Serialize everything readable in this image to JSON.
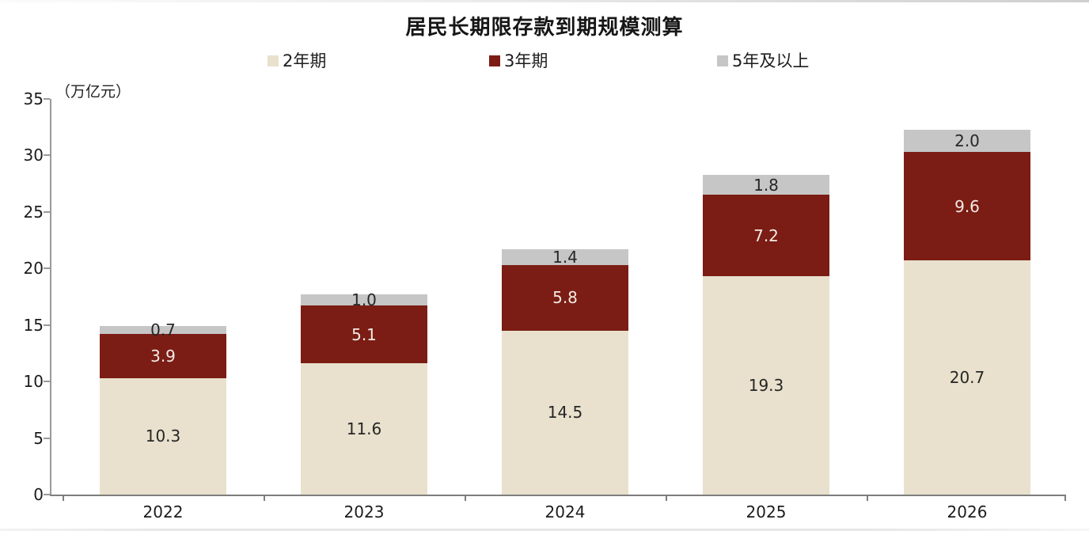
{
  "chart_data": {
    "type": "bar",
    "stacked": true,
    "title": "居民长期限存款到期规模测算",
    "unit_label": "（万亿元）",
    "categories": [
      "2022",
      "2023",
      "2024",
      "2025",
      "2026"
    ],
    "series": [
      {
        "name": "2年期",
        "color": "#E9E1CD",
        "label_color": "#262626",
        "values": [
          10.3,
          11.6,
          14.5,
          19.3,
          20.7
        ]
      },
      {
        "name": "3年期",
        "color": "#7B1D14",
        "label_color": "#F3EAE5",
        "values": [
          3.9,
          5.1,
          5.8,
          7.2,
          9.6
        ]
      },
      {
        "name": "5年及以上",
        "color": "#C6C6C6",
        "label_color": "#262626",
        "values": [
          0.7,
          1.0,
          1.4,
          1.8,
          2.0
        ]
      }
    ],
    "totals": [
      14.9,
      17.7,
      21.7,
      28.3,
      32.3
    ],
    "ylim": [
      0,
      35
    ],
    "yticks": [
      0,
      5,
      10,
      15,
      20,
      25,
      30,
      35
    ],
    "legend_position": "top",
    "grid": false,
    "value_label_decimals": 1,
    "axis_color": "#9a9a9a",
    "text_color": "#1c1c1c"
  }
}
